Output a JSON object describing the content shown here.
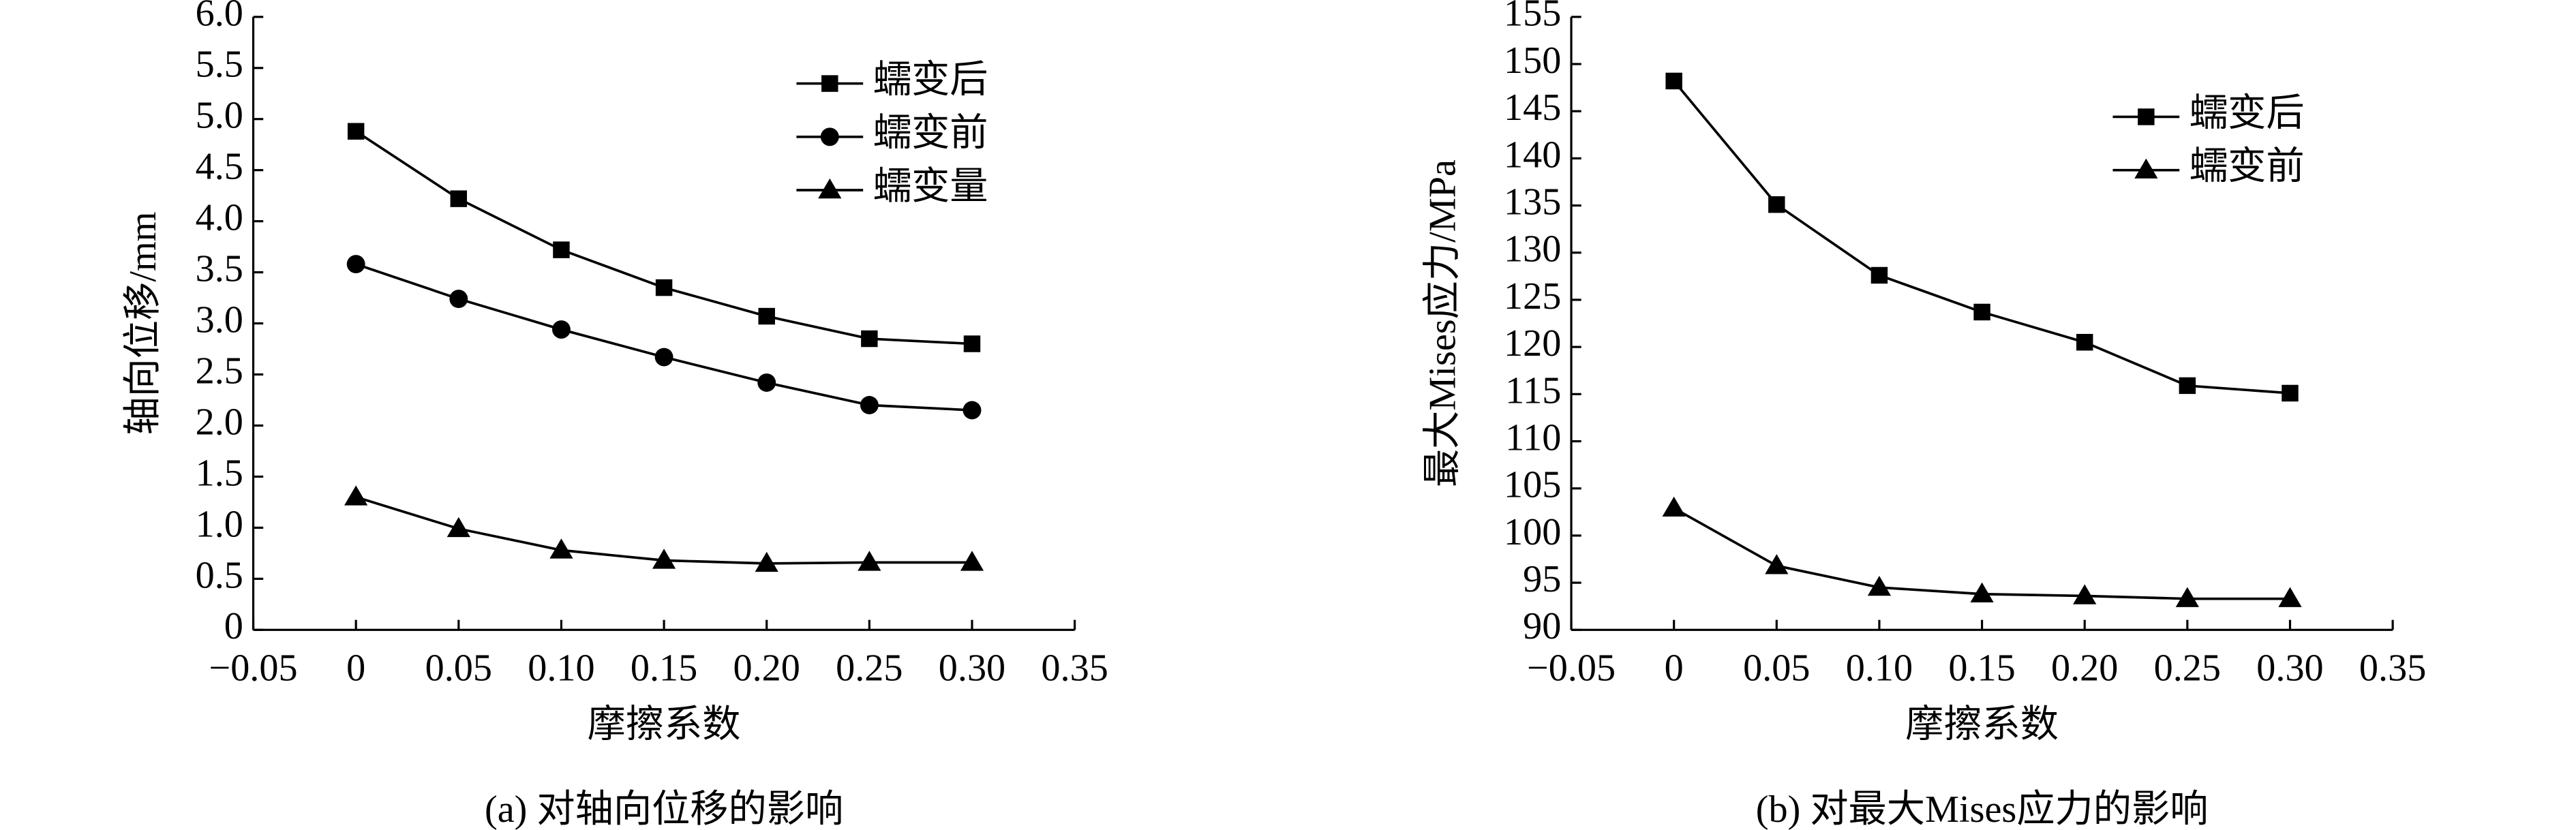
{
  "chart_data": [
    {
      "type": "line",
      "caption": "(a) 对轴向位移的影响",
      "xlabel": "摩擦系数",
      "ylabel": "轴向位移/mm",
      "x": [
        0,
        0.05,
        0.1,
        0.15,
        0.2,
        0.25,
        0.3
      ],
      "xlim": [
        -0.05,
        0.35
      ],
      "xticks": [
        {
          "value": -0.05,
          "label": "−0.05"
        },
        0,
        0.05,
        {
          "value": 0.1,
          "label": "0.10"
        },
        0.15,
        {
          "value": 0.2,
          "label": "0.20"
        },
        0.25,
        {
          "value": 0.3,
          "label": "0.30"
        },
        0.35
      ],
      "ylim": [
        0,
        6
      ],
      "yticks": [
        0,
        0.5,
        {
          "value": 1,
          "label": "1.0"
        },
        1.5,
        {
          "value": 2,
          "label": "2.0"
        },
        2.5,
        {
          "value": 3,
          "label": "3.0"
        },
        3.5,
        {
          "value": 4,
          "label": "4.0"
        },
        4.5,
        {
          "value": 5,
          "label": "5.0"
        },
        5.5,
        {
          "value": 6,
          "label": "6.0"
        }
      ],
      "legend": "upper right",
      "series": [
        {
          "name": "蠕变后",
          "color": "#000000",
          "marker": "square",
          "values": [
            4.88,
            4.22,
            3.72,
            3.35,
            3.07,
            2.85,
            2.8
          ]
        },
        {
          "name": "蠕变前",
          "color": "#000000",
          "marker": "circle",
          "values": [
            3.58,
            3.24,
            2.94,
            2.67,
            2.42,
            2.2,
            2.15
          ]
        },
        {
          "name": "蠕变量",
          "color": "#000000",
          "marker": "triangle",
          "values": [
            1.3,
            0.99,
            0.78,
            0.68,
            0.65,
            0.66,
            0.66
          ]
        }
      ]
    },
    {
      "type": "line",
      "caption": "(b) 对最大Mises应力的影响",
      "xlabel": "摩擦系数",
      "ylabel": "最大Mises应力/MPa",
      "x": [
        0,
        0.05,
        0.1,
        0.15,
        0.2,
        0.25,
        0.3
      ],
      "xlim": [
        -0.05,
        0.35
      ],
      "xticks": [
        {
          "value": -0.05,
          "label": "−0.05"
        },
        0,
        0.05,
        {
          "value": 0.1,
          "label": "0.10"
        },
        0.15,
        {
          "value": 0.2,
          "label": "0.20"
        },
        0.25,
        {
          "value": 0.3,
          "label": "0.30"
        },
        0.35
      ],
      "ylim": [
        90,
        155
      ],
      "yticks": [
        90,
        95,
        100,
        105,
        110,
        115,
        120,
        125,
        130,
        135,
        140,
        145,
        150,
        155
      ],
      "legend": "upper right",
      "series": [
        {
          "name": "蠕变后",
          "color": "#000000",
          "marker": "square",
          "values": [
            148.2,
            135.1,
            127.6,
            123.7,
            120.5,
            115.9,
            115.1
          ]
        },
        {
          "name": "蠕变前",
          "color": "#000000",
          "marker": "triangle",
          "values": [
            102.9,
            96.8,
            94.5,
            93.8,
            93.6,
            93.3,
            93.3
          ]
        }
      ]
    }
  ]
}
